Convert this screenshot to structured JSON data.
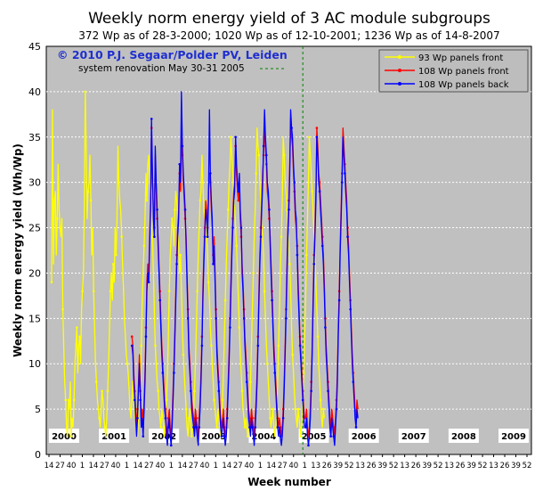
{
  "chart_data": {
    "type": "line",
    "title": "Weekly norm energy yield of 3 AC module subgroups",
    "subtitle": "372 Wp as of 28-3-2000; 1020 Wp as of 12-10-2001; 1236 Wp as of 14-8-2007",
    "xlabel": "Week number",
    "ylabel": "Weekly norm energy yield (Wh/Wp)",
    "ylim": [
      0,
      45
    ],
    "yticks": [
      0,
      5,
      10,
      15,
      20,
      25,
      30,
      35,
      40,
      45
    ],
    "grid": true,
    "legend_position": "top-right",
    "copyright": "© 2010 P.J. Segaar/Polder PV, Leiden",
    "annotation": "system renovation May 30-31 2005",
    "renovation_week_index": 269,
    "years": [
      "2000",
      "2001",
      "2002",
      "2003",
      "2004",
      "2005",
      "2006",
      "2007",
      "2008",
      "2009"
    ],
    "xtick_labels": [
      "14",
      "27",
      "40",
      "1",
      "14",
      "27",
      "40",
      "1",
      "14",
      "27",
      "40",
      "1",
      "14",
      "27",
      "40",
      "1",
      "14",
      "27",
      "40",
      "1",
      "14",
      "27",
      "40",
      "1",
      "13",
      "26",
      "39",
      "52",
      "13",
      "26",
      "39",
      "52",
      "13",
      "26",
      "39",
      "52",
      "13",
      "26",
      "39",
      "52",
      "13",
      "26",
      "39",
      "52"
    ],
    "series": [
      {
        "name": "93 Wp panels front",
        "color": "#ffff00",
        "marker": "#ffff00",
        "segments": [
          {
            "start": 0,
            "values": [
              19,
              38,
              21,
              28,
              29,
              22,
              26,
              32,
              27,
              25,
              24,
              26,
              16,
              12,
              8,
              6,
              3,
              2,
              6,
              5,
              8,
              2,
              4,
              3,
              6,
              10,
              12,
              14,
              9,
              12,
              13,
              10,
              16,
              18,
              20,
              27,
              40,
              34,
              26,
              29,
              30,
              33,
              28,
              22,
              25,
              18,
              14,
              10,
              8,
              6,
              5,
              4,
              3,
              5,
              7,
              6,
              4,
              3,
              2,
              4,
              7,
              10,
              14,
              18,
              20,
              17,
              21,
              19,
              25,
              22,
              26,
              34,
              30,
              28,
              27,
              24,
              21,
              18,
              15,
              13,
              11,
              10,
              9,
              7,
              5,
              4,
              6,
              8,
              6,
              4,
              5,
              3,
              2,
              4,
              6,
              8,
              12,
              17,
              20,
              23,
              26,
              31,
              28,
              32,
              33,
              30,
              28,
              25,
              24,
              20,
              16,
              12,
              10,
              8,
              7,
              5,
              4,
              3,
              5,
              4,
              3,
              2,
              4,
              6,
              9,
              13,
              18,
              22,
              24,
              26,
              25,
              23,
              27,
              29,
              28,
              25,
              23,
              20,
              22,
              18,
              14,
              11,
              9,
              7,
              5,
              3,
              2,
              4,
              5,
              3,
              2,
              3,
              5,
              7,
              10,
              14,
              18,
              22,
              25,
              28,
              29,
              33,
              30,
              27,
              26,
              28,
              24,
              22,
              19,
              17,
              14,
              12,
              10,
              8,
              6,
              5,
              4,
              3,
              5,
              4,
              3,
              2,
              4,
              6,
              9,
              13,
              17,
              21,
              24,
              27,
              30,
              32,
              35,
              33,
              31,
              28,
              27,
              25,
              23,
              20,
              17,
              14,
              11,
              9,
              7,
              5,
              4,
              3,
              4,
              3,
              2,
              3,
              5,
              8,
              12,
              16,
              20,
              24,
              27,
              31,
              36,
              34,
              33,
              30,
              28,
              25,
              24,
              22,
              18,
              15,
              12,
              10,
              8,
              6,
              4,
              3,
              4,
              5,
              3,
              2,
              3,
              5,
              8,
              12,
              16,
              21,
              24,
              28,
              35,
              33,
              30,
              29,
              27,
              25,
              23,
              21,
              18,
              14,
              11,
              9,
              7,
              5,
              4,
              3,
              5,
              4,
              3,
              2,
              4,
              6,
              9,
              13,
              17,
              22,
              26,
              30,
              35,
              33,
              31,
              29,
              27,
              24,
              22,
              19,
              16,
              13,
              10,
              8,
              6,
              4,
              3,
              5,
              4
            ]
          }
        ]
      },
      {
        "name": "108 Wp panels front",
        "color": "#ff0000",
        "marker": "#ff0000",
        "segments": [
          {
            "start": 86,
            "values": [
              13,
              12,
              9,
              7,
              5,
              3,
              5,
              8,
              11,
              7,
              4,
              5,
              3,
              6,
              9,
              14,
              19,
              21,
              20,
              24,
              28,
              36,
              30,
              27,
              25,
              33,
              29,
              26,
              24,
              21,
              18,
              15,
              12,
              10,
              8,
              6,
              5,
              3,
              2,
              4,
              5,
              3,
              2,
              4,
              7,
              10,
              14,
              18,
              22,
              25,
              27,
              31,
              29,
              35,
              33,
              30,
              28,
              26,
              24,
              20,
              16,
              12,
              10,
              8,
              6,
              5,
              4,
              3,
              5,
              4,
              3,
              2,
              4,
              6,
              9,
              13,
              18,
              22,
              25,
              28,
              27,
              25,
              29,
              31,
              30,
              27,
              25,
              22,
              24,
              20,
              16,
              12,
              10,
              8,
              6,
              4,
              3,
              4,
              5,
              3,
              2,
              3,
              5,
              8,
              11,
              15,
              19,
              23,
              26,
              29,
              30,
              34,
              31,
              29,
              28,
              30,
              26,
              24,
              21,
              19,
              16,
              13,
              11,
              9,
              7,
              5,
              4,
              3,
              5,
              4,
              3,
              2,
              4,
              6,
              9,
              13,
              18,
              22,
              25,
              28,
              31,
              33,
              36,
              34,
              32,
              29,
              28,
              26,
              24,
              21,
              18,
              15,
              12,
              10,
              8,
              6,
              4,
              3,
              4,
              3,
              2,
              3,
              5,
              8,
              12,
              16,
              21,
              25,
              28,
              32,
              37,
              35,
              34,
              31,
              29,
              26,
              25,
              23,
              19,
              16,
              13,
              11,
              9,
              7,
              5,
              4,
              4,
              5,
              3,
              2,
              3,
              5,
              8,
              12,
              17,
              22,
              25,
              29,
              36,
              34,
              31,
              30,
              28,
              26,
              24,
              22,
              19,
              15,
              12,
              10,
              8,
              6,
              4,
              3,
              5,
              4,
              3,
              2,
              4,
              6,
              9,
              14,
              18,
              23,
              27,
              31,
              36,
              34,
              32,
              30,
              28,
              25,
              23,
              20,
              17,
              14,
              11,
              9,
              7,
              5,
              4,
              6,
              5
            ]
          }
        ]
      },
      {
        "name": "108 Wp panels back",
        "color": "#0000ff",
        "marker": "#0000ff",
        "segments": [
          {
            "start": 86,
            "values": [
              12,
              11,
              8,
              6,
              4,
              2,
              4,
              7,
              10,
              6,
              3,
              4,
              2,
              5,
              8,
              13,
              18,
              20,
              19,
              23,
              27,
              37,
              31,
              26,
              24,
              34,
              30,
              27,
              23,
              20,
              17,
              14,
              11,
              9,
              7,
              5,
              4,
              2,
              1,
              3,
              4,
              2,
              1,
              3,
              6,
              9,
              13,
              17,
              21,
              24,
              26,
              32,
              30,
              40,
              34,
              31,
              29,
              27,
              23,
              19,
              15,
              11,
              9,
              7,
              5,
              4,
              3,
              2,
              4,
              3,
              2,
              1,
              3,
              5,
              8,
              12,
              17,
              21,
              24,
              27,
              26,
              24,
              28,
              38,
              31,
              28,
              26,
              21,
              23,
              19,
              15,
              11,
              9,
              7,
              5,
              3,
              2,
              3,
              4,
              2,
              1,
              2,
              4,
              7,
              10,
              14,
              18,
              22,
              25,
              28,
              29,
              35,
              32,
              30,
              29,
              31,
              27,
              25,
              20,
              18,
              15,
              12,
              10,
              8,
              6,
              4,
              3,
              2,
              4,
              3,
              2,
              1,
              3,
              5,
              8,
              12,
              17,
              21,
              24,
              27,
              30,
              34,
              38,
              35,
              33,
              30,
              29,
              27,
              23,
              20,
              17,
              14,
              11,
              9,
              7,
              5,
              3,
              2,
              3,
              2,
              1,
              2,
              4,
              7,
              11,
              15,
              20,
              24,
              27,
              31,
              38,
              36,
              35,
              32,
              30,
              27,
              26,
              22,
              18,
              15,
              12,
              10,
              8,
              6,
              4,
              3,
              3,
              4,
              2,
              1,
              2,
              4,
              7,
              11,
              16,
              21,
              24,
              28,
              35,
              33,
              30,
              29,
              27,
              25,
              23,
              21,
              18,
              14,
              11,
              9,
              7,
              5,
              3,
              2,
              4,
              3,
              2,
              1,
              3,
              5,
              8,
              13,
              17,
              22,
              26,
              30,
              35,
              33,
              31,
              29,
              27,
              24,
              22,
              19,
              16,
              13,
              10,
              8,
              6,
              4,
              3,
              5,
              4
            ]
          }
        ]
      }
    ]
  }
}
